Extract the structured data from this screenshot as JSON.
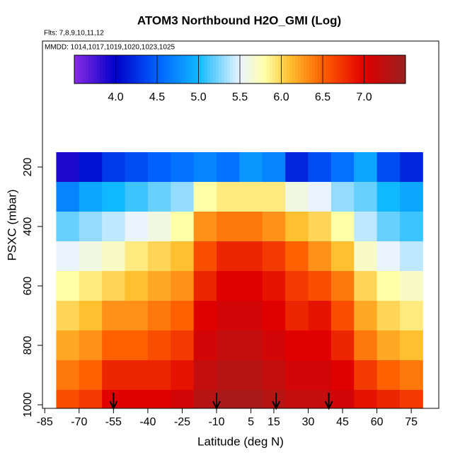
{
  "chart_data": {
    "type": "heatmap",
    "title": "ATOM3 Northbound H2O_GMI (Log)",
    "subtitle": "Flts: 7,8,9,10,11,12",
    "annotation": "MMDD: 1014,1017,1019,1020,1023,1025",
    "x_label": "Latitude (deg N)",
    "y_label": "PSXC (mbar)",
    "xlim": [
      -86,
      87
    ],
    "xticks": [
      -85,
      -70,
      -55,
      -40,
      -25,
      -10,
      5,
      15,
      30,
      45,
      60,
      75
    ],
    "ylim": [
      1012,
      -224
    ],
    "yticks": [
      200,
      400,
      600,
      800,
      1000
    ],
    "x": [
      -75,
      -65,
      -55,
      -45,
      -35,
      -25,
      -15,
      -5,
      5,
      15,
      25,
      35,
      45,
      55,
      65,
      75
    ],
    "x_bin_width": 10,
    "y": [
      200,
      300,
      400,
      500,
      600,
      700,
      800,
      900,
      1000
    ],
    "y_bin_height": 100,
    "z": [
      [
        3.9,
        4.1,
        4.3,
        4.4,
        4.5,
        4.6,
        4.7,
        4.6,
        4.8,
        4.7,
        4.2,
        4.4,
        4.6,
        4.9,
        4.4,
        4.2
      ],
      [
        4.7,
        4.9,
        5.0,
        5.1,
        5.2,
        5.3,
        5.8,
        5.9,
        5.9,
        5.9,
        5.6,
        5.5,
        5.3,
        5.2,
        5.0,
        4.9
      ],
      [
        5.2,
        5.3,
        5.4,
        5.5,
        5.6,
        5.8,
        6.3,
        6.4,
        6.4,
        6.3,
        6.1,
        6.0,
        5.8,
        5.4,
        5.2,
        5.1
      ],
      [
        5.5,
        5.6,
        5.7,
        5.9,
        6.0,
        6.1,
        6.6,
        6.8,
        6.8,
        6.7,
        6.5,
        6.3,
        6.1,
        5.7,
        5.5,
        5.4
      ],
      [
        5.8,
        5.9,
        6.0,
        6.1,
        6.2,
        6.3,
        6.8,
        7.0,
        7.0,
        6.9,
        6.7,
        6.6,
        6.4,
        6.0,
        5.8,
        5.7
      ],
      [
        6.0,
        6.1,
        6.3,
        6.3,
        6.4,
        6.5,
        7.0,
        7.1,
        7.1,
        7.0,
        6.8,
        6.9,
        6.6,
        6.2,
        6.0,
        5.9
      ],
      [
        6.2,
        6.3,
        6.5,
        6.5,
        6.6,
        6.7,
        7.1,
        7.2,
        7.2,
        7.1,
        7.0,
        7.0,
        6.8,
        6.4,
        6.2,
        6.1
      ],
      [
        6.4,
        6.5,
        6.8,
        6.8,
        6.8,
        6.9,
        7.2,
        7.3,
        7.3,
        7.2,
        7.1,
        7.1,
        7.0,
        6.7,
        6.5,
        6.4
      ],
      [
        6.6,
        6.7,
        7.0,
        7.0,
        7.0,
        7.1,
        7.3,
        7.4,
        7.4,
        7.3,
        7.2,
        7.2,
        7.1,
        6.9,
        6.8,
        6.7
      ]
    ],
    "colorbar_lim": [
      3.5,
      7.5
    ],
    "colorbar_ticks": [
      {
        "value": 4,
        "label": "4.0"
      },
      4.5,
      {
        "value": 5,
        "label": "5.0"
      },
      5.5,
      {
        "value": 6,
        "label": "6.0"
      },
      6.5,
      {
        "value": 7,
        "label": "7.0"
      }
    ],
    "colorscale": [
      [
        3.5,
        "#8a2be2"
      ],
      [
        4.0,
        "#0000c8"
      ],
      [
        4.5,
        "#0060ff"
      ],
      [
        5.0,
        "#10b8ff"
      ],
      [
        5.5,
        "#eaf4ff"
      ],
      [
        5.8,
        "#ffffa8"
      ],
      [
        6.1,
        "#ffc030"
      ],
      [
        6.5,
        "#ff6000"
      ],
      [
        7.0,
        "#e00000"
      ],
      [
        7.5,
        "#9a2020"
      ]
    ],
    "arrows_x": [
      -55,
      -10,
      16,
      39
    ]
  }
}
